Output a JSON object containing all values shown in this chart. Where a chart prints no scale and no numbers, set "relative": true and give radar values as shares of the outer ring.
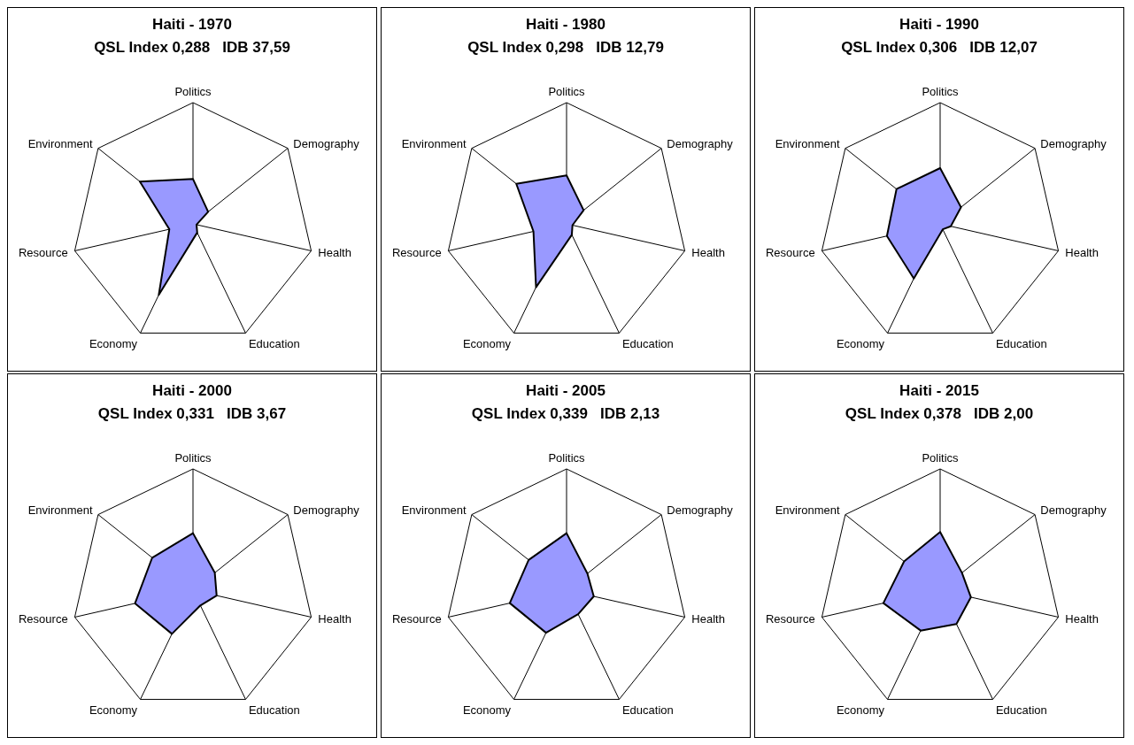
{
  "chart_data": [
    {
      "type": "radar",
      "title": "Haiti - 1970",
      "subtitle": "QSL Index 0,288   IDB 37,59",
      "categories": [
        "Politics",
        "Demography",
        "Health",
        "Education",
        "Economy",
        "Resource",
        "Environment"
      ],
      "relative": true,
      "grid": true,
      "series": [
        {
          "color": "#9999ff",
          "values": [
            0.37,
            0.16,
            0.03,
            0.08,
            0.65,
            0.2,
            0.56
          ]
        }
      ]
    },
    {
      "type": "radar",
      "title": "Haiti - 1980",
      "subtitle": "QSL Index 0,298   IDB 12,79",
      "categories": [
        "Politics",
        "Demography",
        "Health",
        "Education",
        "Economy",
        "Resource",
        "Environment"
      ],
      "relative": true,
      "grid": true,
      "series": [
        {
          "color": "#9999ff",
          "values": [
            0.4,
            0.18,
            0.05,
            0.1,
            0.58,
            0.28,
            0.53
          ]
        }
      ]
    },
    {
      "type": "radar",
      "title": "Haiti - 1990",
      "subtitle": "QSL Index 0,306   IDB 12,07",
      "categories": [
        "Politics",
        "Demography",
        "Health",
        "Education",
        "Economy",
        "Resource",
        "Environment"
      ],
      "relative": true,
      "grid": true,
      "series": [
        {
          "color": "#9999ff",
          "values": [
            0.46,
            0.22,
            0.09,
            0.05,
            0.5,
            0.45,
            0.46
          ]
        }
      ]
    },
    {
      "type": "radar",
      "title": "Haiti - 2000",
      "subtitle": "QSL Index 0,331   IDB 3,67",
      "categories": [
        "Politics",
        "Demography",
        "Health",
        "Education",
        "Economy",
        "Resource",
        "Environment"
      ],
      "relative": true,
      "grid": true,
      "series": [
        {
          "color": "#9999ff",
          "values": [
            0.47,
            0.23,
            0.2,
            0.14,
            0.4,
            0.49,
            0.43
          ]
        }
      ]
    },
    {
      "type": "radar",
      "title": "Haiti - 2005",
      "subtitle": "QSL Index 0,339   IDB 2,13",
      "categories": [
        "Politics",
        "Demography",
        "Health",
        "Education",
        "Economy",
        "Resource",
        "Environment"
      ],
      "relative": true,
      "grid": true,
      "series": [
        {
          "color": "#9999ff",
          "values": [
            0.47,
            0.22,
            0.23,
            0.22,
            0.39,
            0.48,
            0.4
          ]
        }
      ]
    },
    {
      "type": "radar",
      "title": "Haiti - 2015",
      "subtitle": "QSL Index 0,378   IDB 2,00",
      "categories": [
        "Politics",
        "Demography",
        "Health",
        "Education",
        "Economy",
        "Resource",
        "Environment"
      ],
      "relative": true,
      "grid": true,
      "series": [
        {
          "color": "#9999ff",
          "values": [
            0.48,
            0.23,
            0.26,
            0.31,
            0.37,
            0.48,
            0.38
          ]
        }
      ]
    }
  ]
}
